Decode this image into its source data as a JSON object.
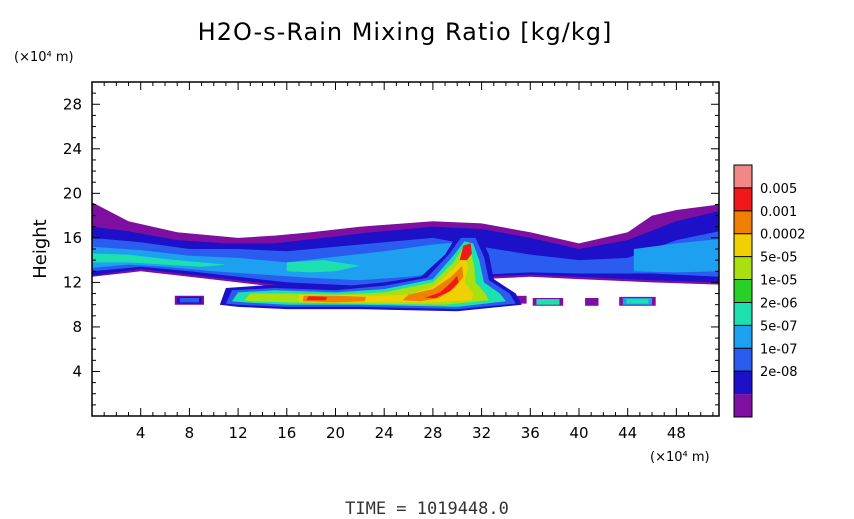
{
  "chart_data": {
    "type": "heatmap",
    "title": "H2O-s-Rain Mixing Ratio [kg/kg]",
    "ylabel": "Height",
    "xlabel": "",
    "x_unit_label": "(×10⁴ m)",
    "y_unit_label": "(×10⁴ m)",
    "xlim": [
      0,
      51.5
    ],
    "ylim": [
      0,
      30
    ],
    "x_ticks": [
      4,
      8,
      12,
      16,
      20,
      24,
      28,
      32,
      36,
      40,
      44,
      48
    ],
    "y_ticks": [
      4,
      8,
      12,
      16,
      20,
      24,
      28
    ],
    "x_tick_labels": [
      "4",
      "8",
      "12",
      "16",
      "20",
      "24",
      "28",
      "32",
      "36",
      "40",
      "44",
      "48"
    ],
    "y_tick_labels": [
      "4",
      "8",
      "12",
      "16",
      "20",
      "24",
      "28"
    ],
    "colorbar": {
      "levels": [
        "0.005",
        "0.001",
        "0.0002",
        "5e-05",
        "1e-05",
        "2e-06",
        "5e-07",
        "1e-07",
        "2e-08"
      ],
      "colors": [
        "#7f0fa0",
        "#1c10c8",
        "#2a5cf0",
        "#1ea0f0",
        "#1ce0b0",
        "#28d028",
        "#a8e010",
        "#f0d000",
        "#f08000",
        "#f01818",
        "#f08888"
      ]
    },
    "regions": [
      {
        "level": 0,
        "polygon": [
          [
            0,
            13
          ],
          [
            0,
            19.2
          ],
          [
            3,
            17.5
          ],
          [
            7,
            16.5
          ],
          [
            12,
            16
          ],
          [
            15,
            16.2
          ],
          [
            18,
            16.5
          ],
          [
            22,
            17
          ],
          [
            28,
            17.5
          ],
          [
            32,
            17.3
          ],
          [
            36,
            16.5
          ],
          [
            40,
            15.5
          ],
          [
            44,
            16.5
          ],
          [
            46,
            18
          ],
          [
            48,
            18.5
          ],
          [
            51.5,
            19
          ],
          [
            51.5,
            11.8
          ],
          [
            46,
            12
          ],
          [
            40,
            12.3
          ],
          [
            36,
            12.5
          ],
          [
            32,
            12.3
          ],
          [
            28,
            11.7
          ],
          [
            22,
            11.2
          ],
          [
            16,
            11.5
          ],
          [
            12,
            12
          ],
          [
            8,
            12.5
          ],
          [
            4,
            13
          ],
          [
            0,
            12.5
          ]
        ]
      },
      {
        "level": 1,
        "polygon": [
          [
            0,
            12.6
          ],
          [
            0,
            17
          ],
          [
            3,
            16.6
          ],
          [
            7,
            15.8
          ],
          [
            11,
            15.5
          ],
          [
            15,
            15.5
          ],
          [
            19,
            16
          ],
          [
            23,
            16.5
          ],
          [
            28,
            17
          ],
          [
            32,
            16.8
          ],
          [
            36,
            16
          ],
          [
            40,
            15
          ],
          [
            44,
            15.8
          ],
          [
            48,
            17.5
          ],
          [
            51.5,
            18.4
          ],
          [
            51.5,
            12
          ],
          [
            46,
            12.2
          ],
          [
            40,
            12.5
          ],
          [
            36,
            12.7
          ],
          [
            32,
            12.5
          ],
          [
            28,
            11.9
          ],
          [
            22,
            11.4
          ],
          [
            16,
            11.7
          ],
          [
            12,
            12.2
          ],
          [
            8,
            12.7
          ],
          [
            4,
            13.2
          ]
        ]
      },
      {
        "level": 2,
        "polygon": [
          [
            0,
            13
          ],
          [
            0,
            16
          ],
          [
            4,
            15.6
          ],
          [
            8,
            15
          ],
          [
            12,
            15
          ],
          [
            16,
            14.8
          ],
          [
            20,
            15.2
          ],
          [
            24,
            15.6
          ],
          [
            28,
            16
          ],
          [
            32,
            15.2
          ],
          [
            36,
            14.5
          ],
          [
            40,
            14
          ],
          [
            44,
            14.2
          ],
          [
            48,
            15.8
          ],
          [
            51.5,
            16.6
          ],
          [
            51.5,
            12.5
          ],
          [
            46,
            12.8
          ],
          [
            40,
            12.8
          ],
          [
            36,
            12.9
          ],
          [
            32,
            12.7
          ],
          [
            28,
            12.2
          ],
          [
            22,
            11.7
          ],
          [
            16,
            12
          ],
          [
            12,
            12.5
          ],
          [
            8,
            13
          ],
          [
            4,
            13.4
          ]
        ]
      },
      {
        "level": 3,
        "polygon": [
          [
            0,
            13.3
          ],
          [
            0,
            15.2
          ],
          [
            4,
            14.9
          ],
          [
            8,
            14.4
          ],
          [
            12,
            14.2
          ],
          [
            16,
            13.8
          ],
          [
            20,
            14.3
          ],
          [
            24,
            14.8
          ],
          [
            28,
            15.4
          ],
          [
            31,
            15.7
          ],
          [
            32,
            14.5
          ],
          [
            30,
            13
          ],
          [
            26,
            12.5
          ],
          [
            22,
            12.2
          ],
          [
            18,
            12.4
          ],
          [
            14,
            12.7
          ],
          [
            10,
            13
          ],
          [
            6,
            13.4
          ],
          [
            3,
            13.6
          ]
        ]
      },
      {
        "level": 3,
        "polygon": [
          [
            44.5,
            13
          ],
          [
            44.5,
            15
          ],
          [
            48,
            15.5
          ],
          [
            51.5,
            15.9
          ],
          [
            51.5,
            13
          ],
          [
            48,
            12.9
          ]
        ]
      },
      {
        "level": 4,
        "polygon": [
          [
            0,
            13.8
          ],
          [
            0,
            14.6
          ],
          [
            3,
            14.5
          ],
          [
            6,
            14.1
          ],
          [
            9,
            13.8
          ],
          [
            11,
            13.6
          ],
          [
            9,
            13.4
          ],
          [
            6,
            13.6
          ],
          [
            3,
            13.8
          ]
        ]
      },
      {
        "level": 4,
        "polygon": [
          [
            16,
            13
          ],
          [
            16,
            13.8
          ],
          [
            19,
            14
          ],
          [
            22,
            13.5
          ],
          [
            20,
            13
          ],
          [
            18,
            12.9
          ]
        ]
      },
      {
        "level": 0,
        "polygon": [
          [
            6.8,
            10
          ],
          [
            6.8,
            10.8
          ],
          [
            9.2,
            10.8
          ],
          [
            9.2,
            10
          ]
        ]
      },
      {
        "level": 0,
        "polygon": [
          [
            12,
            10
          ],
          [
            12,
            10.7
          ],
          [
            13.6,
            10.7
          ],
          [
            13.6,
            10
          ]
        ]
      },
      {
        "level": 0,
        "polygon": [
          [
            36.2,
            9.9
          ],
          [
            36.2,
            10.6
          ],
          [
            38.7,
            10.6
          ],
          [
            38.7,
            9.9
          ]
        ]
      },
      {
        "level": 0,
        "polygon": [
          [
            40.5,
            9.9
          ],
          [
            40.5,
            10.6
          ],
          [
            41.6,
            10.6
          ],
          [
            41.6,
            9.9
          ]
        ]
      },
      {
        "level": 0,
        "polygon": [
          [
            43.3,
            9.9
          ],
          [
            43.3,
            10.7
          ],
          [
            46.3,
            10.7
          ],
          [
            46.3,
            9.9
          ]
        ]
      },
      {
        "level": 0,
        "polygon": [
          [
            34.5,
            10.1
          ],
          [
            34.5,
            10.8
          ],
          [
            35.7,
            10.8
          ],
          [
            35.7,
            10.1
          ]
        ]
      },
      {
        "level": 1,
        "polygon": [
          [
            7,
            10.1
          ],
          [
            7,
            10.7
          ],
          [
            9,
            10.7
          ],
          [
            9,
            10.1
          ]
        ]
      },
      {
        "level": 2,
        "polygon": [
          [
            7.2,
            10.2
          ],
          [
            7.2,
            10.6
          ],
          [
            8.8,
            10.6
          ],
          [
            8.8,
            10.2
          ]
        ]
      },
      {
        "level": 3,
        "polygon": [
          [
            43.6,
            10
          ],
          [
            43.6,
            10.6
          ],
          [
            46,
            10.6
          ],
          [
            46,
            10
          ]
        ]
      },
      {
        "level": 4,
        "polygon": [
          [
            43.9,
            10.1
          ],
          [
            43.9,
            10.5
          ],
          [
            45.7,
            10.5
          ],
          [
            45.7,
            10.1
          ]
        ]
      },
      {
        "level": 4,
        "polygon": [
          [
            36.5,
            10
          ],
          [
            36.5,
            10.5
          ],
          [
            38.4,
            10.5
          ],
          [
            38.4,
            10
          ]
        ]
      },
      {
        "level": 1,
        "polygon": [
          [
            10.5,
            10
          ],
          [
            11,
            11.5
          ],
          [
            15,
            11.8
          ],
          [
            20,
            11.6
          ],
          [
            24,
            12
          ],
          [
            27,
            12.5
          ],
          [
            29,
            14.5
          ],
          [
            30,
            16.3
          ],
          [
            31.8,
            16.3
          ],
          [
            32.6,
            14.5
          ],
          [
            33,
            12.3
          ],
          [
            34.8,
            11
          ],
          [
            35.3,
            10
          ],
          [
            30,
            9.4
          ],
          [
            22,
            9.6
          ],
          [
            16,
            9.6
          ],
          [
            12,
            9.8
          ]
        ]
      },
      {
        "level": 2,
        "polygon": [
          [
            11,
            10.1
          ],
          [
            11.5,
            11.3
          ],
          [
            15,
            11.5
          ],
          [
            20,
            11.3
          ],
          [
            24,
            11.7
          ],
          [
            27.5,
            12.4
          ],
          [
            29.3,
            14.5
          ],
          [
            30.3,
            16
          ],
          [
            31.5,
            16
          ],
          [
            32.2,
            14.3
          ],
          [
            32.6,
            12.2
          ],
          [
            34.3,
            11
          ],
          [
            34.8,
            10.1
          ],
          [
            30,
            9.6
          ],
          [
            22,
            9.8
          ],
          [
            16,
            9.8
          ],
          [
            12,
            10
          ]
        ]
      },
      {
        "level": 4,
        "polygon": [
          [
            11.5,
            10.3
          ],
          [
            12,
            11.1
          ],
          [
            15,
            11.3
          ],
          [
            20,
            11.1
          ],
          [
            24,
            11.4
          ],
          [
            28,
            12.3
          ],
          [
            29.6,
            14.3
          ],
          [
            30.6,
            15.7
          ],
          [
            31.3,
            15.5
          ],
          [
            31.8,
            14
          ],
          [
            32.2,
            12
          ],
          [
            33.5,
            11
          ],
          [
            34,
            10.3
          ],
          [
            30,
            9.8
          ],
          [
            22,
            10
          ],
          [
            16,
            10
          ],
          [
            12.5,
            10.2
          ]
        ]
      },
      {
        "level": 6,
        "polygon": [
          [
            12.5,
            10.4
          ],
          [
            13,
            11
          ],
          [
            16,
            11
          ],
          [
            20,
            10.9
          ],
          [
            24,
            11.1
          ],
          [
            28,
            12
          ],
          [
            29.7,
            13.8
          ],
          [
            30.5,
            15.2
          ],
          [
            31.1,
            14.8
          ],
          [
            31.4,
            13.5
          ],
          [
            31.5,
            12
          ],
          [
            32.3,
            11
          ],
          [
            32.6,
            10.4
          ],
          [
            29,
            10
          ],
          [
            22,
            10.1
          ],
          [
            16,
            10.2
          ],
          [
            13,
            10.3
          ]
        ]
      },
      {
        "level": 7,
        "polygon": [
          [
            17,
            10.2
          ],
          [
            17,
            10.9
          ],
          [
            20,
            10.9
          ],
          [
            23,
            10.8
          ],
          [
            26,
            10.9
          ],
          [
            28,
            11.6
          ],
          [
            29.7,
            13.2
          ],
          [
            30.6,
            14.4
          ],
          [
            30.9,
            13.4
          ],
          [
            30.6,
            12
          ],
          [
            31.3,
            11
          ],
          [
            31.2,
            10.4
          ],
          [
            28,
            10.2
          ],
          [
            24,
            10.2
          ],
          [
            20,
            10.2
          ]
        ]
      },
      {
        "level": 8,
        "polygon": [
          [
            17.3,
            10.3
          ],
          [
            17.4,
            10.8
          ],
          [
            20,
            10.8
          ],
          [
            22.5,
            10.7
          ],
          [
            22.4,
            10.3
          ],
          [
            20,
            10.2
          ]
        ]
      },
      {
        "level": 8,
        "polygon": [
          [
            25.5,
            10.4
          ],
          [
            26,
            10.9
          ],
          [
            28,
            11.4
          ],
          [
            29.5,
            12.5
          ],
          [
            30.4,
            13.5
          ],
          [
            30.5,
            12.5
          ],
          [
            29.8,
            11.5
          ],
          [
            28.5,
            10.6
          ],
          [
            27,
            10.3
          ]
        ]
      },
      {
        "level": 9,
        "polygon": [
          [
            17.6,
            10.4
          ],
          [
            17.8,
            10.75
          ],
          [
            19.3,
            10.7
          ],
          [
            19.2,
            10.4
          ]
        ]
      },
      {
        "level": 9,
        "polygon": [
          [
            27.3,
            10.6
          ],
          [
            28.6,
            11.1
          ],
          [
            29.5,
            12
          ],
          [
            30,
            12.6
          ],
          [
            30.1,
            12
          ],
          [
            29.4,
            11.2
          ],
          [
            28.2,
            10.6
          ]
        ]
      },
      {
        "level": 9,
        "polygon": [
          [
            30.2,
            14
          ],
          [
            30.5,
            15.3
          ],
          [
            31.1,
            15.5
          ],
          [
            31.2,
            14.6
          ],
          [
            30.8,
            14
          ]
        ]
      }
    ]
  },
  "time_label": "TIME = 1019448.0"
}
